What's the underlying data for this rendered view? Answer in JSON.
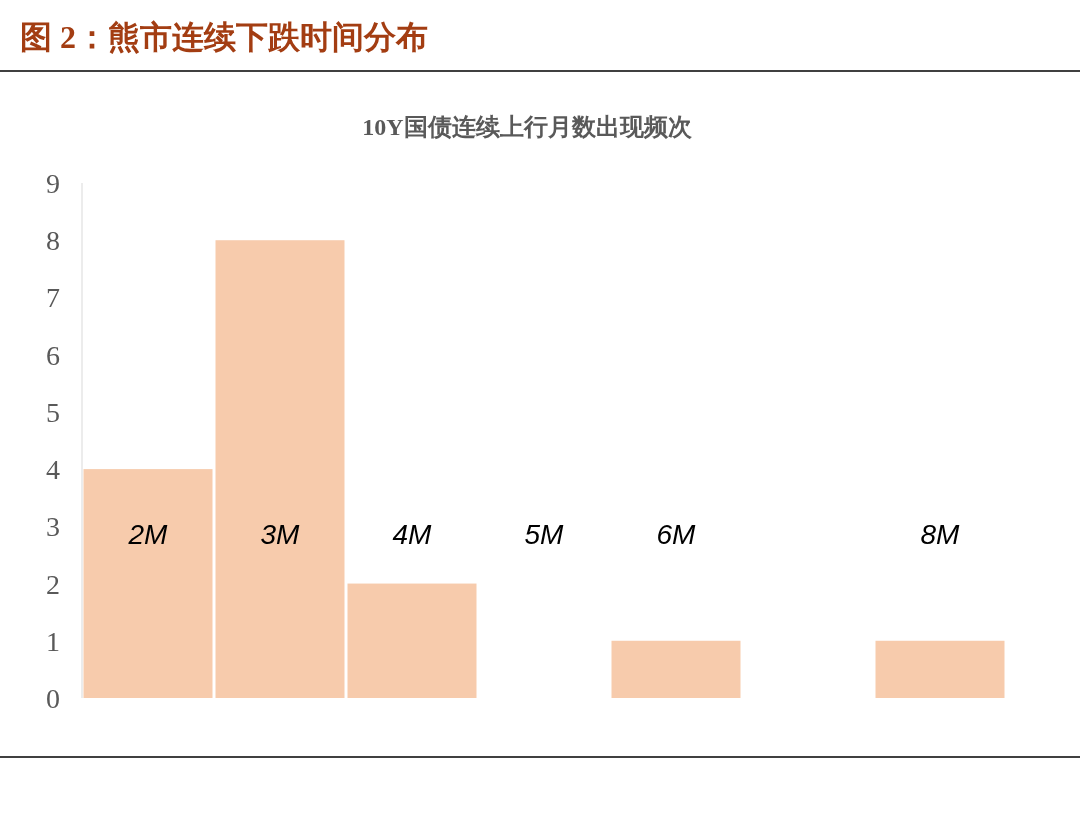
{
  "chart_data": {
    "type": "bar",
    "title": "图 2：熊市连续下跌时间分布",
    "subtitle": "10Y国债连续上行月数出现频次",
    "categories": [
      "2M",
      "3M",
      "4M",
      "5M",
      "6M",
      null,
      "8M"
    ],
    "values": [
      4,
      8,
      2,
      0,
      1,
      0,
      1
    ],
    "color": "#f7cbac",
    "ylim": [
      0,
      9
    ],
    "yticks": [
      0,
      1,
      2,
      3,
      4,
      5,
      6,
      7,
      8,
      9
    ],
    "grid": false
  }
}
